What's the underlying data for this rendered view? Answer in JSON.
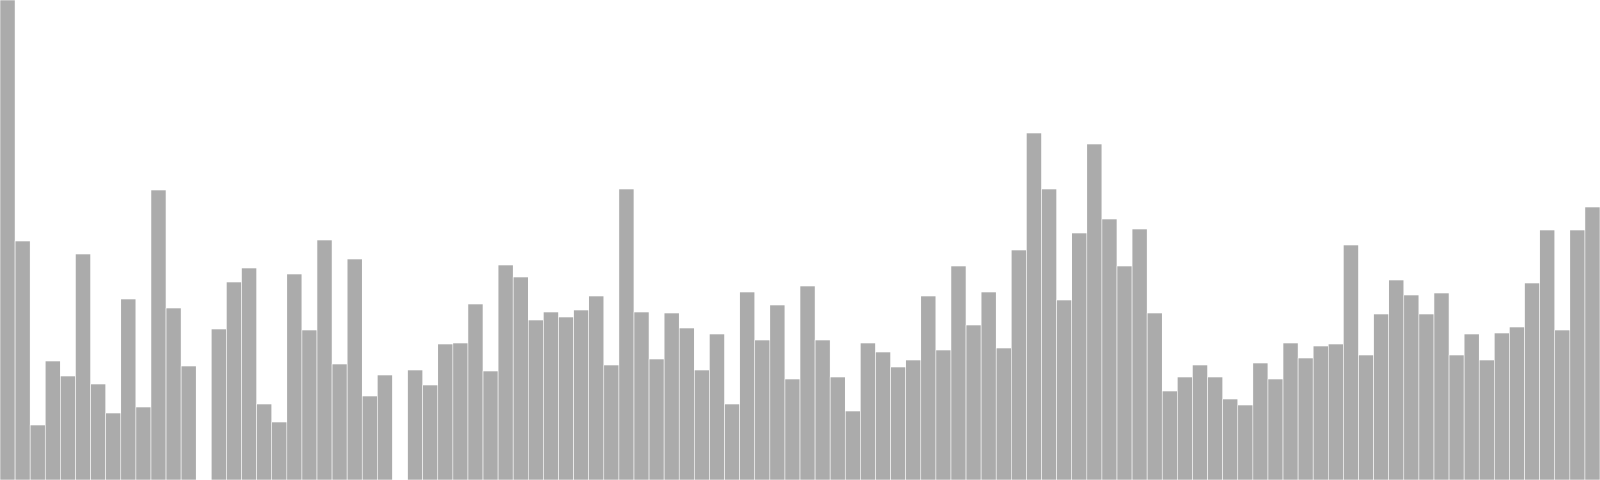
{
  "colors": {
    "bar_fill": "#ababab",
    "bar_edge": "#ffffff",
    "background": "#ffffff"
  },
  "chart_data": {
    "type": "bar",
    "axes_visible": false,
    "grid": false,
    "legend": "none",
    "ylim": [
      0,
      480
    ],
    "values": [
      480,
      239,
      55,
      119,
      104,
      226,
      96,
      67,
      181,
      73,
      290,
      172,
      114,
      0,
      151,
      198,
      212,
      76,
      58,
      206,
      150,
      240,
      116,
      221,
      84,
      105,
      0,
      110,
      95,
      136,
      137,
      176,
      109,
      215,
      203,
      160,
      168,
      163,
      170,
      184,
      115,
      291,
      168,
      121,
      167,
      152,
      110,
      146,
      76,
      188,
      140,
      175,
      101,
      194,
      140,
      103,
      69,
      137,
      128,
      113,
      120,
      184,
      130,
      214,
      155,
      188,
      132,
      230,
      347,
      291,
      180,
      247,
      336,
      261,
      214,
      251,
      167,
      89,
      103,
      115,
      103,
      81,
      75,
      117,
      101,
      137,
      122,
      134,
      136,
      235,
      125,
      166,
      200,
      185,
      166,
      187,
      125,
      146,
      120,
      147,
      153,
      197,
      250,
      150,
      250,
      273
    ]
  }
}
